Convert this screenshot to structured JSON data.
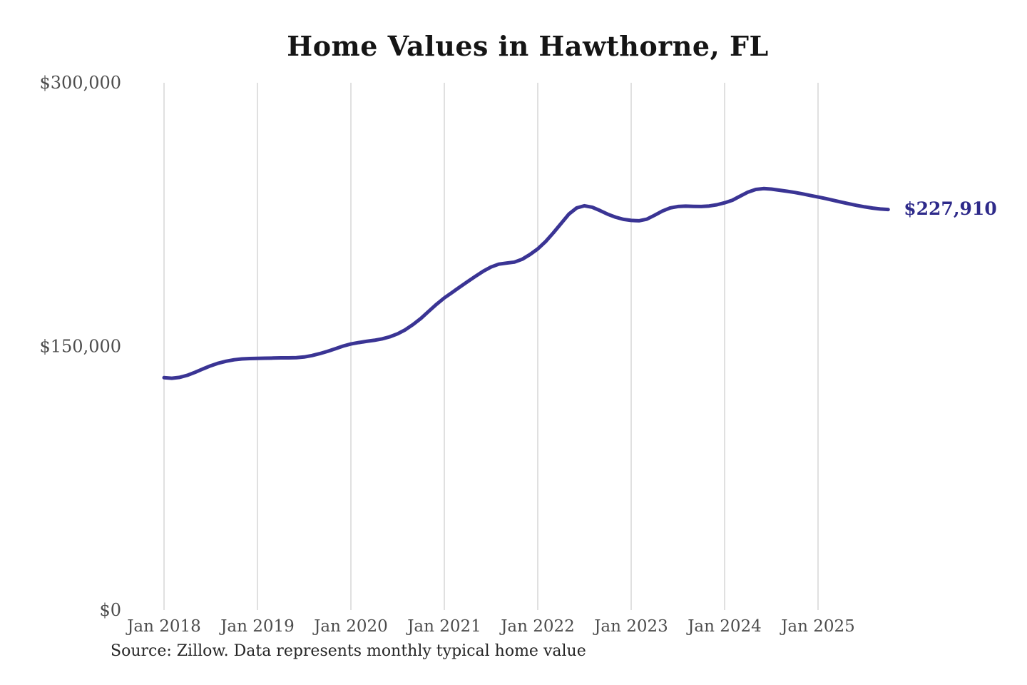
{
  "chart_data": {
    "type": "line",
    "title": "Home Values in Hawthorne, FL",
    "source": "Source: Zillow. Data represents monthly typical home value",
    "end_label": "$227,910",
    "latest_value": 227910,
    "x_unit": "month",
    "x_start": "2018-01",
    "x_end": "2025-10",
    "ylim": [
      0,
      300000
    ],
    "grid": "vertical-only",
    "yticks": [
      {
        "label": "$0",
        "value": 0
      },
      {
        "label": "$150,000",
        "value": 150000
      },
      {
        "label": "$300,000",
        "value": 300000
      }
    ],
    "xticks": [
      {
        "label": "Jan 2018",
        "month_index": 0
      },
      {
        "label": "Jan 2019",
        "month_index": 12
      },
      {
        "label": "Jan 2020",
        "month_index": 24
      },
      {
        "label": "Jan 2021",
        "month_index": 36
      },
      {
        "label": "Jan 2022",
        "month_index": 48
      },
      {
        "label": "Jan 2023",
        "month_index": 60
      },
      {
        "label": "Jan 2024",
        "month_index": 72
      },
      {
        "label": "Jan 2025",
        "month_index": 84
      }
    ],
    "values_by_year": {
      "2018": [
        132200,
        131900,
        132400,
        133600,
        135300,
        137200,
        139000,
        140500,
        141600,
        142400,
        142900,
        143100
      ],
      "2019": [
        143200,
        143300,
        143400,
        143500,
        143500,
        143600,
        144000,
        144800,
        145900,
        147200,
        148700,
        150200
      ],
      "2020": [
        151400,
        152200,
        152900,
        153500,
        154300,
        155500,
        157200,
        159500,
        162500,
        166000,
        170000,
        174000
      ],
      "2021": [
        177600,
        180700,
        183800,
        186900,
        189900,
        192800,
        195200,
        196800,
        197400,
        198000,
        199600,
        202300
      ],
      "2022": [
        205500,
        209600,
        214600,
        220000,
        225300,
        228800,
        230000,
        229200,
        227300,
        225200,
        223500,
        222300
      ],
      "2023": [
        221700,
        221500,
        222400,
        224600,
        227000,
        228800,
        229600,
        229800,
        229700,
        229600,
        229900,
        230600
      ],
      "2024": [
        231700,
        233200,
        235500,
        237800,
        239300,
        239800,
        239500,
        238900,
        238300,
        237600,
        236800,
        235900
      ],
      "2025": [
        235000,
        234100,
        233100,
        232100,
        231100,
        230200,
        229400,
        228700,
        228200,
        227910
      ]
    },
    "colors": {
      "line": "#3a3494",
      "end_label_text": "#2e2a8a",
      "grid": "#cfcfcf",
      "tick_text": "#4d4d4d",
      "title_text": "#151515",
      "source_text": "#252525"
    }
  }
}
